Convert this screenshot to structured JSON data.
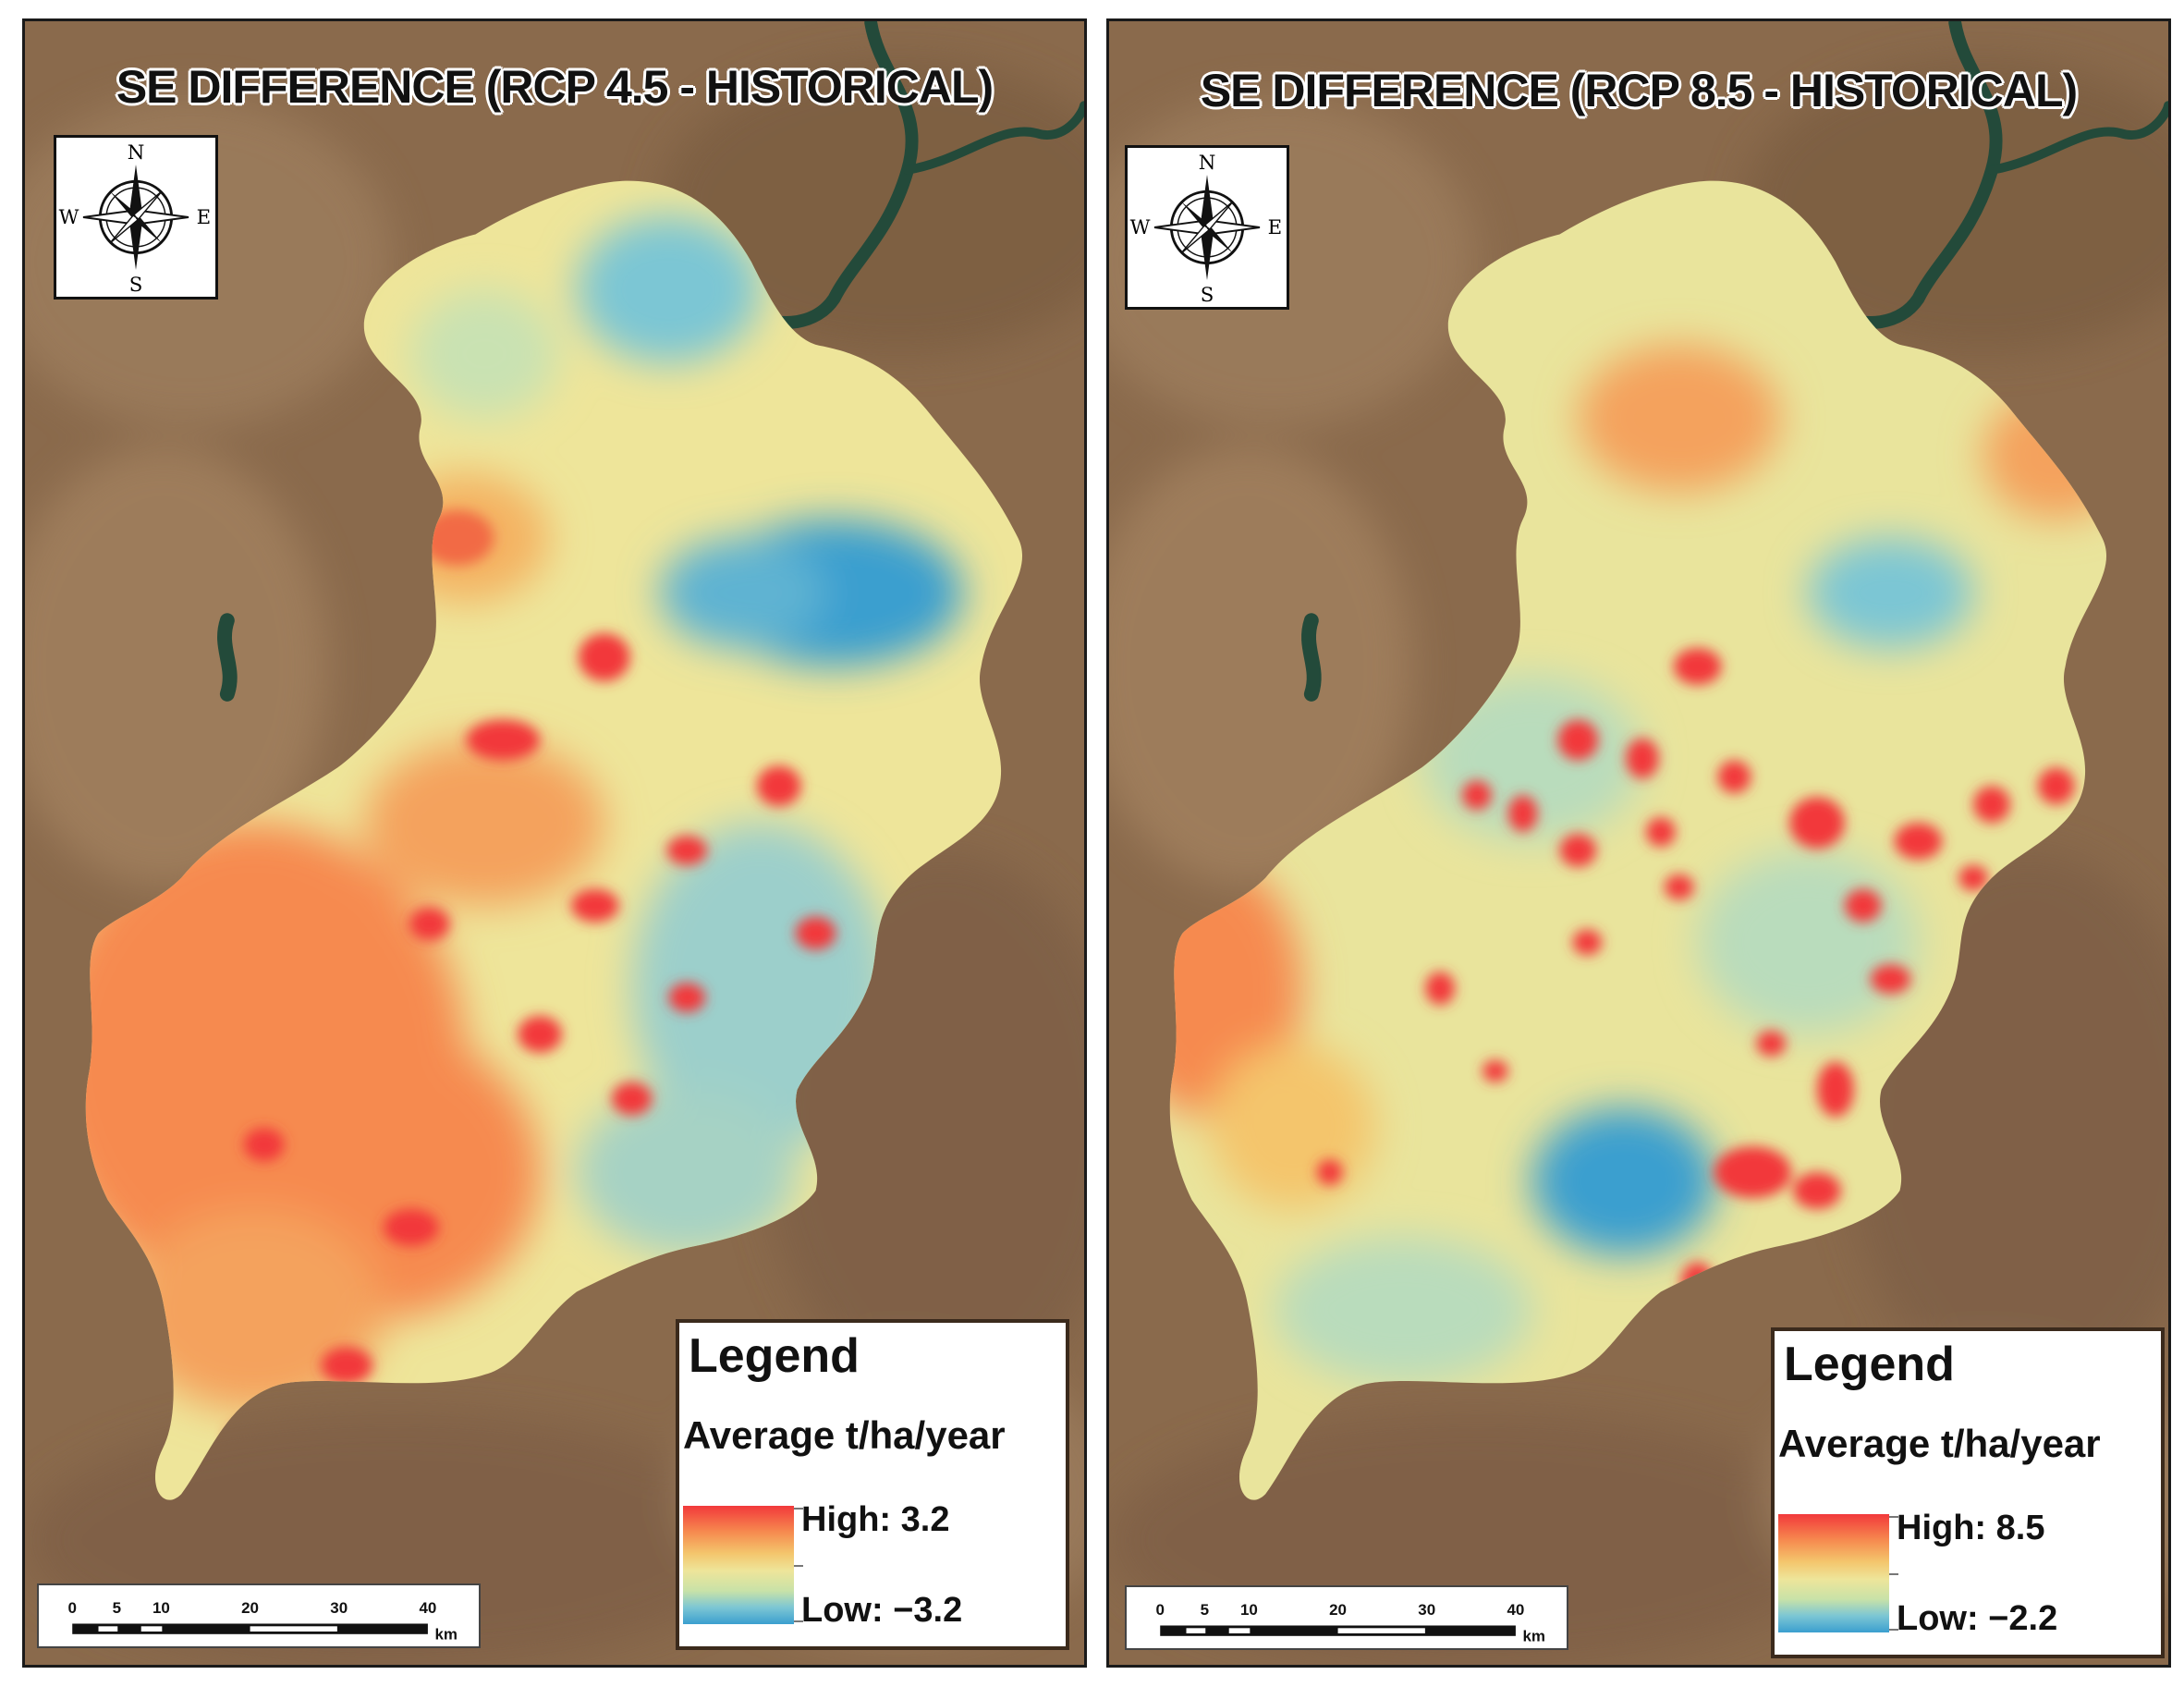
{
  "panels": [
    {
      "title": "SE DIFFERENCE (RCP 4.5 - HISTORICAL)",
      "compass": {
        "n": "N",
        "e": "E",
        "s": "S",
        "w": "W"
      },
      "legend": {
        "title": "Legend",
        "unit": "Average t/ha/year",
        "high": "High: 3.2",
        "low": "Low:  −3.2"
      },
      "scale": {
        "ticks": [
          "0",
          "5",
          "10",
          "20",
          "30",
          "40"
        ],
        "unit": "km"
      }
    },
    {
      "title": "SE DIFFERENCE (RCP 8.5 - HISTORICAL)",
      "compass": {
        "n": "N",
        "e": "E",
        "s": "S",
        "w": "W"
      },
      "legend": {
        "title": "Legend",
        "unit": "Average t/ha/year",
        "high": "High: 8.5",
        "low": "Low: −2.2"
      },
      "scale": {
        "ticks": [
          "0",
          "5",
          "10",
          "20",
          "30",
          "40"
        ],
        "unit": "km"
      }
    }
  ],
  "colors": {
    "high": "#f2393b",
    "mid": "#eee59a",
    "low": "#3b9fcf",
    "basemap": "#8a6a4c",
    "water": "#234a3a"
  }
}
